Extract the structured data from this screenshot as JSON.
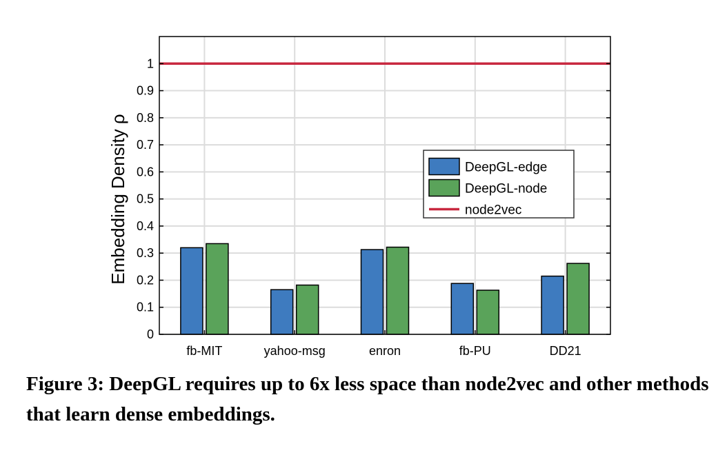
{
  "chart_data": {
    "type": "bar",
    "categories": [
      "fb-MIT",
      "yahoo-msg",
      "enron",
      "fb-PU",
      "DD21"
    ],
    "series": [
      {
        "name": "DeepGL-edge",
        "values": [
          0.32,
          0.165,
          0.313,
          0.188,
          0.215
        ],
        "color": "#3e7bbf"
      },
      {
        "name": "DeepGL-node",
        "values": [
          0.335,
          0.182,
          0.322,
          0.163,
          0.262
        ],
        "color": "#5aa35a"
      }
    ],
    "reference_line": {
      "name": "node2vec",
      "value": 1.0,
      "color": "#c8283f"
    },
    "ylabel": "Embedding Density ρ",
    "ylim": [
      0,
      1.1
    ],
    "yticks": [
      "0",
      "0.1",
      "0.2",
      "0.3",
      "0.4",
      "0.5",
      "0.6",
      "0.7",
      "0.8",
      "0.9",
      "1"
    ],
    "grid": true,
    "legend_position": "center-right"
  },
  "caption": "Figure 3: DeepGL requires up to 6x less space than node2vec and other methods that learn dense embeddings."
}
